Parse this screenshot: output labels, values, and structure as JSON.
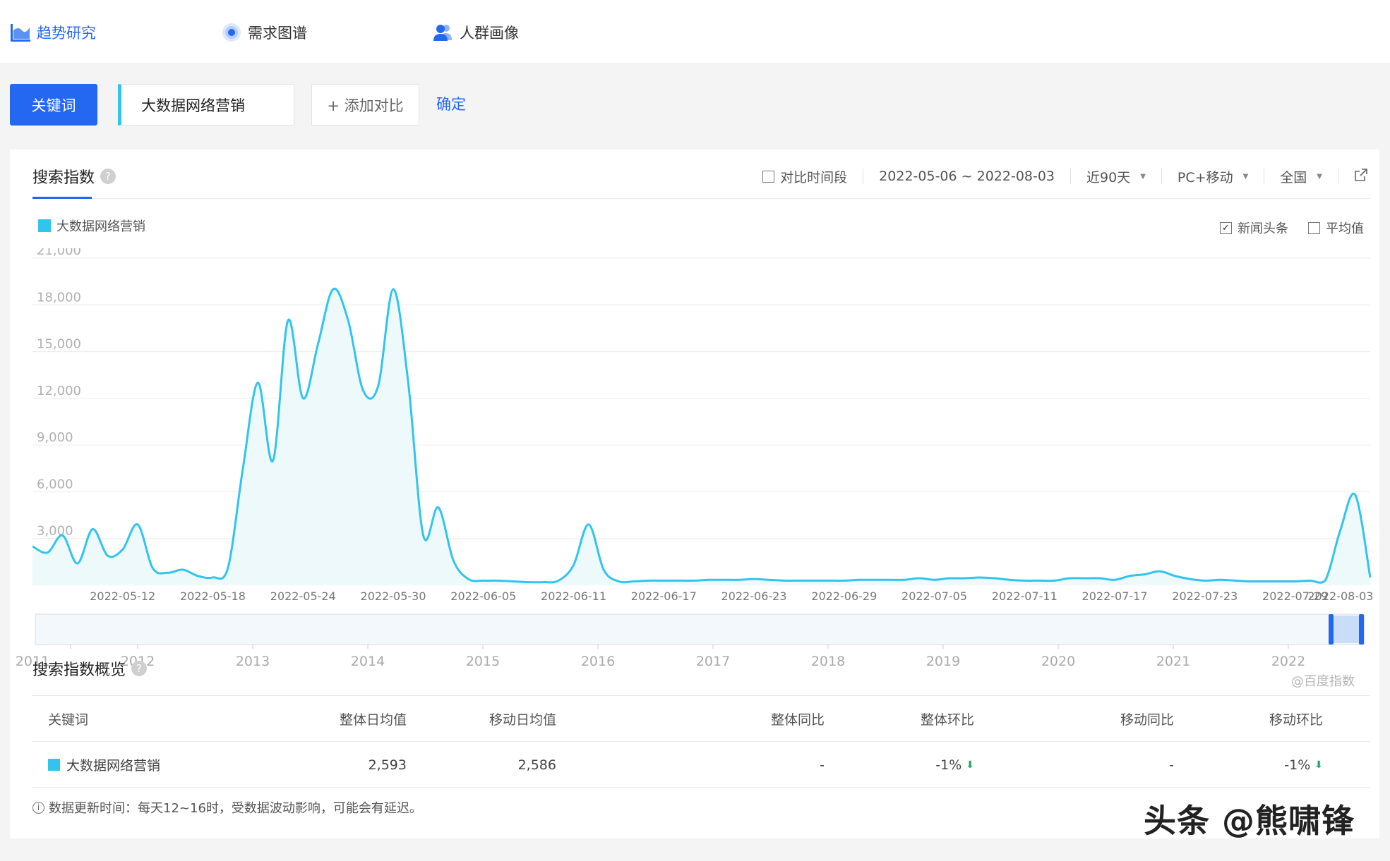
{
  "nav": {
    "items": [
      {
        "label": "趋势研究",
        "icon": "trend-chart-icon",
        "active": true
      },
      {
        "label": "需求图谱",
        "icon": "target-circle-icon",
        "active": false
      },
      {
        "label": "人群画像",
        "icon": "users-icon",
        "active": false
      }
    ]
  },
  "keyword_bar": {
    "keyword_button": "关键词",
    "keyword_value": "大数据网络营销",
    "add_compare": "+ 添加对比",
    "confirm": "确定"
  },
  "search_index": {
    "title": "搜索指数",
    "filters": {
      "compare_period": "对比时间段",
      "date_range": "2022-05-06 ~ 2022-08-03",
      "period": "近90天",
      "device": "PC+移动",
      "region": "全国"
    },
    "toggles": {
      "news_headlines": "新闻头条",
      "news_checked": true,
      "average": "平均值",
      "average_checked": false
    },
    "watermark": "@百度指数"
  },
  "chart_data": {
    "type": "area",
    "series": [
      {
        "name": "大数据网络营销",
        "color": "#31c4ec",
        "x": [
          "2022-05-06",
          "2022-05-07",
          "2022-05-08",
          "2022-05-09",
          "2022-05-10",
          "2022-05-11",
          "2022-05-12",
          "2022-05-13",
          "2022-05-14",
          "2022-05-15",
          "2022-05-16",
          "2022-05-17",
          "2022-05-18",
          "2022-05-19",
          "2022-05-20",
          "2022-05-21",
          "2022-05-22",
          "2022-05-23",
          "2022-05-24",
          "2022-05-25",
          "2022-05-26",
          "2022-05-27",
          "2022-05-28",
          "2022-05-29",
          "2022-05-30",
          "2022-05-31",
          "2022-06-01",
          "2022-06-02",
          "2022-06-03",
          "2022-06-04",
          "2022-06-05",
          "2022-06-06",
          "2022-06-07",
          "2022-06-08",
          "2022-06-09",
          "2022-06-10",
          "2022-06-11",
          "2022-06-12",
          "2022-06-13",
          "2022-06-14",
          "2022-06-15",
          "2022-06-16",
          "2022-06-17",
          "2022-06-18",
          "2022-06-19",
          "2022-06-20",
          "2022-06-21",
          "2022-06-22",
          "2022-06-23",
          "2022-06-24",
          "2022-06-25",
          "2022-06-26",
          "2022-06-27",
          "2022-06-28",
          "2022-06-29",
          "2022-06-30",
          "2022-07-01",
          "2022-07-02",
          "2022-07-03",
          "2022-07-04",
          "2022-07-05",
          "2022-07-06",
          "2022-07-07",
          "2022-07-08",
          "2022-07-09",
          "2022-07-10",
          "2022-07-11",
          "2022-07-12",
          "2022-07-13",
          "2022-07-14",
          "2022-07-15",
          "2022-07-16",
          "2022-07-17",
          "2022-07-18",
          "2022-07-19",
          "2022-07-20",
          "2022-07-21",
          "2022-07-22",
          "2022-07-23",
          "2022-07-24",
          "2022-07-25",
          "2022-07-26",
          "2022-07-27",
          "2022-07-28",
          "2022-07-29",
          "2022-07-30",
          "2022-07-31",
          "2022-08-01",
          "2022-08-02",
          "2022-08-03"
        ],
        "values": [
          2500,
          2100,
          3200,
          1400,
          3600,
          1900,
          2300,
          3900,
          1100,
          800,
          1000,
          600,
          500,
          1100,
          7500,
          13000,
          8000,
          17000,
          12000,
          15500,
          19000,
          17000,
          12500,
          12800,
          19000,
          13000,
          3200,
          5000,
          1600,
          400,
          300,
          300,
          250,
          200,
          200,
          300,
          1300,
          3900,
          1000,
          250,
          250,
          300,
          300,
          300,
          300,
          350,
          350,
          350,
          400,
          350,
          300,
          300,
          300,
          300,
          300,
          350,
          350,
          350,
          350,
          450,
          350,
          450,
          450,
          500,
          450,
          350,
          300,
          300,
          300,
          450,
          450,
          450,
          350,
          600,
          700,
          900,
          600,
          400,
          300,
          350,
          300,
          250,
          250,
          250,
          250,
          300,
          300,
          3500,
          5800,
          500
        ]
      }
    ],
    "xticks": [
      "2022-05-12",
      "2022-05-18",
      "2022-05-24",
      "2022-05-30",
      "2022-06-05",
      "2022-06-11",
      "2022-06-17",
      "2022-06-23",
      "2022-06-29",
      "2022-07-05",
      "2022-07-11",
      "2022-07-17",
      "2022-07-23",
      "2022-07-29",
      "2022-08-03"
    ],
    "yticks": [
      "3,000",
      "6,000",
      "9,000",
      "12,000",
      "15,000",
      "18,000",
      "21,000"
    ],
    "ylim": [
      0,
      21000
    ],
    "navigator_years": [
      "2011",
      "2012",
      "2013",
      "2014",
      "2015",
      "2016",
      "2017",
      "2018",
      "2019",
      "2020",
      "2021",
      "2022"
    ],
    "grid": true
  },
  "overview": {
    "title": "搜索指数概览",
    "headers": [
      "关键词",
      "整体日均值",
      "移动日均值",
      "整体同比",
      "整体环比",
      "移动同比",
      "移动环比"
    ],
    "row": {
      "keyword": "大数据网络营销",
      "overall_avg": "2,593",
      "mobile_avg": "2,586",
      "overall_yoy": "-",
      "overall_mom": "-1%",
      "mobile_yoy": "-",
      "mobile_mom": "-1%"
    },
    "note": "数据更新时间：每天12~16时，受数据波动影响，可能会有延迟。"
  },
  "brand_watermark": "头条 @熊啸锋"
}
